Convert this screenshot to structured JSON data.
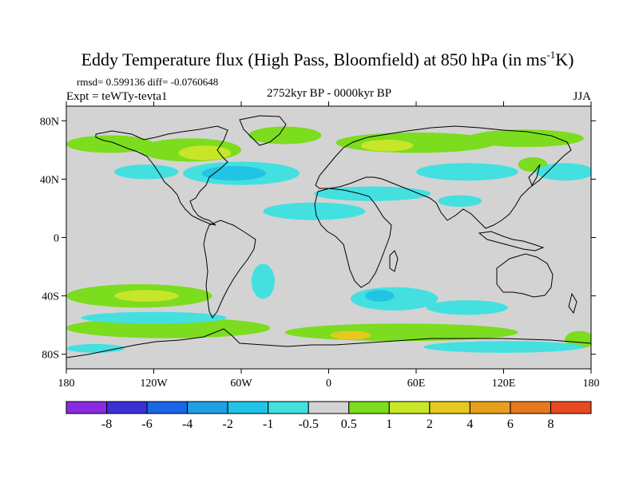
{
  "title": "Eddy Temperature flux (High Pass, Bloomfield) at 850 hPa (in ms",
  "title_sup": "-1",
  "title_end": "K)",
  "stats_line": "rmsd= 0.599136 diff= -0.0760648",
  "expt_label": "Expt = teWTy-tevta1",
  "period_label": "2752kyr BP - 0000kyr BP",
  "season_label": "JJA",
  "map": {
    "lon_range": [
      -180,
      180
    ],
    "lat_range": [
      -90,
      90
    ],
    "background_color": "#d3d3d3",
    "lon_ticks": [
      {
        "lon": -180,
        "label": "180"
      },
      {
        "lon": -120,
        "label": "120W"
      },
      {
        "lon": -60,
        "label": "60W"
      },
      {
        "lon": 0,
        "label": "0"
      },
      {
        "lon": 60,
        "label": "60E"
      },
      {
        "lon": 120,
        "label": "120E"
      },
      {
        "lon": 180,
        "label": "180"
      }
    ],
    "lat_ticks": [
      {
        "lat": 80,
        "label": "80N"
      },
      {
        "lat": 40,
        "label": "40N"
      },
      {
        "lat": 0,
        "label": "0"
      },
      {
        "lat": -40,
        "label": "40S"
      },
      {
        "lat": -80,
        "label": "80S"
      }
    ]
  },
  "colorbar": {
    "colors": [
      "#8a2be2",
      "#3b2fd6",
      "#1a66e6",
      "#1f9fe6",
      "#22c4e6",
      "#44e0e0",
      "#d3d3d3",
      "#7cdc1e",
      "#c8e628",
      "#e6c81e",
      "#e6a01e",
      "#e6781e",
      "#e64a1e"
    ],
    "tick_labels": [
      "-8",
      "-6",
      "-4",
      "-2",
      "-1",
      "-0.5",
      "0.5",
      "1",
      "2",
      "4",
      "6",
      "8"
    ]
  },
  "fields": [
    {
      "kind": "pos",
      "level": 1,
      "lon": -150,
      "lat": 64,
      "rx": 30,
      "ry": 6
    },
    {
      "kind": "pos",
      "level": 1,
      "lon": -95,
      "lat": 60,
      "rx": 35,
      "ry": 8
    },
    {
      "kind": "pos",
      "level": 2,
      "lon": -85,
      "lat": 58,
      "rx": 18,
      "ry": 5
    },
    {
      "kind": "pos",
      "level": 1,
      "lon": -30,
      "lat": 70,
      "rx": 25,
      "ry": 6
    },
    {
      "kind": "pos",
      "level": 1,
      "lon": 60,
      "lat": 65,
      "rx": 55,
      "ry": 7
    },
    {
      "kind": "pos",
      "level": 2,
      "lon": 40,
      "lat": 63,
      "rx": 18,
      "ry": 4
    },
    {
      "kind": "pos",
      "level": 1,
      "lon": 135,
      "lat": 68,
      "rx": 40,
      "ry": 6
    },
    {
      "kind": "pos",
      "level": 1,
      "lon": 140,
      "lat": 50,
      "rx": 10,
      "ry": 5
    },
    {
      "kind": "neg",
      "level": 1,
      "lon": -125,
      "lat": 45,
      "rx": 22,
      "ry": 5
    },
    {
      "kind": "neg",
      "level": 1,
      "lon": -60,
      "lat": 44,
      "rx": 40,
      "ry": 8
    },
    {
      "kind": "neg",
      "level": 2,
      "lon": -65,
      "lat": 44,
      "rx": 22,
      "ry": 5
    },
    {
      "kind": "neg",
      "level": 1,
      "lon": -10,
      "lat": 18,
      "rx": 35,
      "ry": 6
    },
    {
      "kind": "neg",
      "level": 1,
      "lon": 30,
      "lat": 30,
      "rx": 40,
      "ry": 5
    },
    {
      "kind": "neg",
      "level": 1,
      "lon": 95,
      "lat": 45,
      "rx": 35,
      "ry": 6
    },
    {
      "kind": "neg",
      "level": 1,
      "lon": 162,
      "lat": 45,
      "rx": 20,
      "ry": 6
    },
    {
      "kind": "neg",
      "level": 1,
      "lon": 90,
      "lat": 25,
      "rx": 15,
      "ry": 4
    },
    {
      "kind": "pos",
      "level": 1,
      "lon": -130,
      "lat": -40,
      "rx": 50,
      "ry": 8
    },
    {
      "kind": "pos",
      "level": 2,
      "lon": -125,
      "lat": -40,
      "rx": 22,
      "ry": 4
    },
    {
      "kind": "pos",
      "level": 1,
      "lon": -110,
      "lat": -62,
      "rx": 70,
      "ry": 7
    },
    {
      "kind": "pos",
      "level": 1,
      "lon": 50,
      "lat": -65,
      "rx": 80,
      "ry": 6
    },
    {
      "kind": "pos",
      "level": 3,
      "lon": 15,
      "lat": -67,
      "rx": 14,
      "ry": 3
    },
    {
      "kind": "pos",
      "level": 1,
      "lon": 172,
      "lat": -70,
      "rx": 10,
      "ry": 6
    },
    {
      "kind": "neg",
      "level": 1,
      "lon": -45,
      "lat": -30,
      "rx": 8,
      "ry": 12
    },
    {
      "kind": "neg",
      "level": 1,
      "lon": 45,
      "lat": -42,
      "rx": 30,
      "ry": 8
    },
    {
      "kind": "neg",
      "level": 2,
      "lon": 35,
      "lat": -40,
      "rx": 10,
      "ry": 4
    },
    {
      "kind": "neg",
      "level": 1,
      "lon": 95,
      "lat": -48,
      "rx": 28,
      "ry": 5
    },
    {
      "kind": "neg",
      "level": 1,
      "lon": -120,
      "lat": -55,
      "rx": 50,
      "ry": 4
    },
    {
      "kind": "neg",
      "level": 1,
      "lon": 120,
      "lat": -75,
      "rx": 55,
      "ry": 4
    },
    {
      "kind": "neg",
      "level": 1,
      "lon": -160,
      "lat": -76,
      "rx": 20,
      "ry": 3
    }
  ]
}
